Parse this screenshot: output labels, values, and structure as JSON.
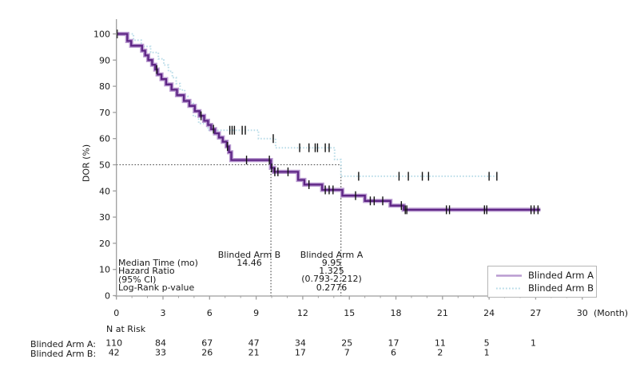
{
  "chart_data": {
    "type": "line",
    "subtype": "kaplan-meier-step",
    "title": "",
    "ylabel": "DOR (%)",
    "xlabel": "(Month)",
    "xlim": [
      0,
      30
    ],
    "ylim": [
      0,
      100
    ],
    "x_ticks": [
      0,
      3,
      6,
      9,
      12,
      15,
      18,
      21,
      24,
      27,
      30
    ],
    "x_minor_tick_every": 1,
    "y_ticks": [
      0,
      10,
      20,
      30,
      40,
      50,
      60,
      70,
      80,
      90,
      100
    ],
    "grid": false,
    "legend_position": "bottom-right",
    "censor_marker": "vertical-tick",
    "colors": {
      "arm_a_core": "#5E2585",
      "arm_a_halo": "#BA9BD1",
      "arm_b": "#B9DCE8",
      "reference_line": "#4a4a4a",
      "axis": "#9e9e9e",
      "censor": "#111111",
      "text": "#1a1a1a"
    },
    "series": [
      {
        "name": "Blinded Arm A",
        "style": "solid",
        "color": "#5E2585",
        "halo_color": "#BA9BD1",
        "steps": [
          [
            0,
            100
          ],
          [
            0.7,
            97.3
          ],
          [
            0.95,
            95.5
          ],
          [
            1.65,
            93.6
          ],
          [
            1.85,
            91.8
          ],
          [
            2.05,
            90
          ],
          [
            2.3,
            88.2
          ],
          [
            2.5,
            86.4
          ],
          [
            2.65,
            84.5
          ],
          [
            2.9,
            82.7
          ],
          [
            3.2,
            80.7
          ],
          [
            3.55,
            78.7
          ],
          [
            3.9,
            76.6
          ],
          [
            4.35,
            74.4
          ],
          [
            4.7,
            72.5
          ],
          [
            5.05,
            70.5
          ],
          [
            5.35,
            68.7
          ],
          [
            5.65,
            66.8
          ],
          [
            5.9,
            65.2
          ],
          [
            6.1,
            63.6
          ],
          [
            6.35,
            62
          ],
          [
            6.6,
            60.4
          ],
          [
            6.85,
            58.8
          ],
          [
            7.1,
            57
          ],
          [
            7.25,
            54.8
          ],
          [
            7.4,
            51.8
          ],
          [
            9.95,
            48.8
          ],
          [
            10.15,
            47.3
          ],
          [
            11.7,
            44.2
          ],
          [
            12.1,
            42.4
          ],
          [
            13.25,
            40.4
          ],
          [
            14.55,
            38.2
          ],
          [
            16,
            36.2
          ],
          [
            17.65,
            34.4
          ],
          [
            18.5,
            32.8
          ]
        ],
        "end_time": 27.3,
        "censor_times": [
          0.05,
          2.6,
          5.45,
          6.25,
          7.15,
          8.38,
          9.85,
          10.0,
          10.2,
          10.4,
          11.05,
          12.4,
          13.45,
          13.7,
          13.95,
          15.4,
          16.35,
          16.6,
          17.15,
          18.35,
          18.6,
          18.7,
          21.25,
          21.45,
          23.7,
          23.85,
          26.7,
          26.9,
          27.15
        ]
      },
      {
        "name": "Blinded Arm B",
        "style": "dotted",
        "color": "#B9DCE8",
        "halo_color": "#B9DCE8",
        "steps": [
          [
            0,
            100
          ],
          [
            1.1,
            97.6
          ],
          [
            1.6,
            95.2
          ],
          [
            2.2,
            92.9
          ],
          [
            2.7,
            90.5
          ],
          [
            3.05,
            88.1
          ],
          [
            3.35,
            85.7
          ],
          [
            3.6,
            83.3
          ],
          [
            3.85,
            81
          ],
          [
            4.1,
            78.6
          ],
          [
            4.4,
            76.2
          ],
          [
            4.6,
            73.8
          ],
          [
            4.95,
            68.5
          ],
          [
            5.3,
            65.8
          ],
          [
            5.9,
            63.2
          ],
          [
            9.15,
            60
          ],
          [
            10.25,
            56.5
          ],
          [
            14.05,
            52
          ],
          [
            14.46,
            45.6
          ]
        ],
        "end_time": 24.5,
        "censor_times": [
          7.3,
          7.45,
          7.6,
          8.1,
          8.3,
          10.1,
          11.8,
          12.4,
          12.8,
          12.95,
          13.45,
          13.7,
          15.6,
          18.2,
          18.8,
          19.7,
          20.1,
          24.0,
          24.5
        ]
      }
    ],
    "reference_lines": {
      "horizontal": {
        "y": 50,
        "x_from": 0,
        "x_to": 14.46
      },
      "medians": [
        {
          "series": "Blinded Arm A",
          "x": 9.95
        },
        {
          "series": "Blinded Arm B",
          "x": 14.46
        }
      ]
    },
    "annotations": {
      "row_labels": [
        "Median Time (mo)",
        "Hazard Ratio",
        "(95% CI)",
        "Log-Rank p-value"
      ],
      "columns": [
        {
          "header": "Blinded Arm B",
          "values": [
            "14.46",
            "",
            "",
            ""
          ]
        },
        {
          "header": "Blinded Arm A",
          "values": [
            "9.95",
            "1.325",
            "(0.793-2.212)",
            "0.2776"
          ]
        }
      ]
    },
    "risk_table": {
      "title": "N at Risk",
      "months": [
        0,
        3,
        6,
        9,
        12,
        15,
        18,
        21,
        24,
        27,
        30
      ],
      "rows": [
        {
          "label": "Blinded Arm A:",
          "counts": [
            "110",
            "84",
            "67",
            "47",
            "34",
            "25",
            "17",
            "11",
            "5",
            "1",
            ""
          ]
        },
        {
          "label": "Blinded Arm B:",
          "counts": [
            "42",
            "33",
            "26",
            "21",
            "17",
            "7",
            "6",
            "2",
            "1",
            "",
            ""
          ]
        }
      ]
    },
    "legend": [
      {
        "label": "Blinded Arm A"
      },
      {
        "label": "Blinded Arm B"
      }
    ]
  }
}
